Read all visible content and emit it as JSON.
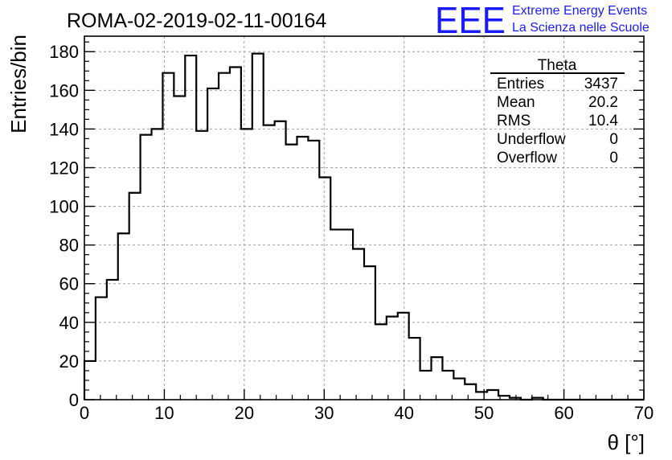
{
  "chart_data": {
    "type": "bar",
    "title": "ROMA-02-2019-02-11-00164",
    "xlabel": "θ [°]",
    "ylabel": "Entries/bin",
    "xlim": [
      0,
      70
    ],
    "ylim": [
      0,
      188
    ],
    "x_ticks": [
      0,
      10,
      20,
      30,
      40,
      50,
      60,
      70
    ],
    "y_ticks": [
      0,
      20,
      40,
      60,
      80,
      100,
      120,
      140,
      160,
      180
    ],
    "grid": true,
    "histogram": true,
    "bin_width": 1.4,
    "values": [
      20,
      53,
      62,
      86,
      107,
      137,
      140,
      169,
      157,
      178,
      139,
      161,
      169,
      172,
      140,
      179,
      142,
      144,
      132,
      136,
      134,
      115,
      88,
      88,
      78,
      69,
      39,
      43,
      45,
      32,
      15,
      22,
      15,
      11,
      8,
      4,
      5,
      2,
      1,
      0,
      1,
      0,
      0,
      0,
      0,
      0,
      0,
      0,
      0,
      0
    ],
    "stats_box": {
      "title": "Theta",
      "rows": [
        {
          "label": "Entries",
          "value": "3437"
        },
        {
          "label": "Mean",
          "value": "20.2"
        },
        {
          "label": "RMS",
          "value": "10.4"
        },
        {
          "label": "Underflow",
          "value": "0"
        },
        {
          "label": "Overflow",
          "value": "0"
        }
      ]
    }
  },
  "logo": {
    "mark": "EEE",
    "line1": "Extreme Energy Events",
    "line2": "La Scienza nelle Scuole",
    "color": "#1a1aff"
  },
  "colors": {
    "line": "#000000",
    "grid": "#a0a0a0"
  }
}
